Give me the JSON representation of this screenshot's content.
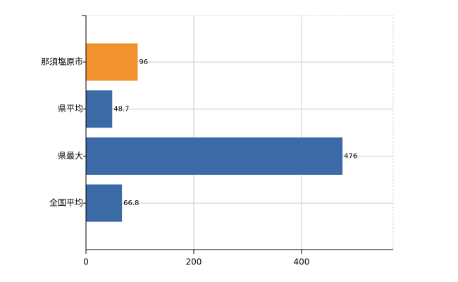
{
  "chart_data": {
    "type": "bar",
    "orientation": "horizontal",
    "categories": [
      "那須塩原市",
      "県平均",
      "県最大",
      "全国平均"
    ],
    "values": [
      96,
      48.7,
      476,
      66.8
    ],
    "colors": [
      "#f0922e",
      "#3b6aa7",
      "#3b6aa7",
      "#3b6aa7"
    ],
    "xlim": [
      0,
      570
    ],
    "xticks": [
      0,
      200,
      400
    ],
    "grid": true
  }
}
